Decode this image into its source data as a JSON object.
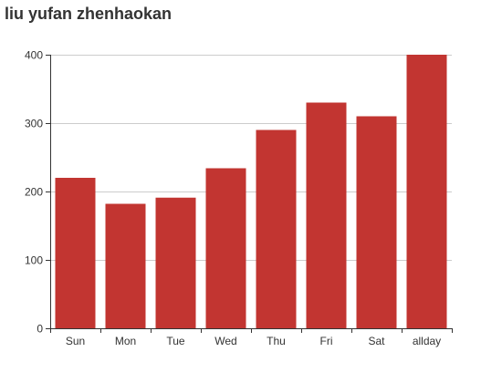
{
  "chart_data": {
    "type": "bar",
    "title": "liu yufan zhenhaokan",
    "categories": [
      "Sun",
      "Mon",
      "Tue",
      "Wed",
      "Thu",
      "Fri",
      "Sat",
      "allday"
    ],
    "values": [
      220,
      182,
      191,
      234,
      290,
      330,
      310,
      400
    ],
    "ylim": [
      0,
      400
    ],
    "yticks": [
      0,
      100,
      200,
      300,
      400
    ],
    "grid": true,
    "bar_color": "#c23531",
    "grid_color": "#cccccc",
    "axis_color": "#333333"
  }
}
